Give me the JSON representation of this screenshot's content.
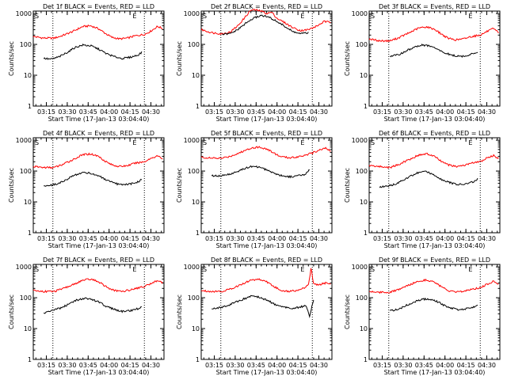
{
  "chart_data": [
    {
      "type": "line",
      "title": "Det 1f BLACK = Events, RED = LLD",
      "ylabel": "Counts/sec",
      "xlabel": "Start Time (17-Jan-13 03:04:40)",
      "x_ticks": [
        "03:15",
        "03:30",
        "03:45",
        "04:00",
        "04:15",
        "04:30"
      ],
      "y_ticks": [
        "1",
        "10",
        "100",
        "1000"
      ],
      "yscale": "log",
      "ylim": [
        1,
        1200
      ],
      "markers": [
        "S",
        "E"
      ],
      "series": [
        {
          "color": "#ff0000",
          "x": [
            0,
            0.08,
            0.16,
            0.22,
            0.3,
            0.38,
            0.44,
            0.5,
            0.55,
            0.6,
            0.66,
            0.72,
            0.78,
            0.85,
            0.9,
            0.95,
            0.99
          ],
          "values": [
            180,
            160,
            160,
            190,
            260,
            380,
            400,
            320,
            230,
            170,
            150,
            160,
            190,
            210,
            270,
            380,
            330
          ]
        },
        {
          "color": "#000000",
          "x": [
            0.08,
            0.14,
            0.2,
            0.26,
            0.32,
            0.38,
            0.44,
            0.5,
            0.56,
            0.62,
            0.68,
            0.74,
            0.8,
            0.83
          ],
          "values": [
            35,
            33,
            40,
            55,
            80,
            95,
            90,
            70,
            50,
            40,
            35,
            38,
            45,
            55
          ]
        }
      ]
    },
    {
      "type": "line",
      "title": "Det 2f BLACK = Events, RED = LLD",
      "ylabel": "Counts/sec",
      "xlabel": "Start Time (17-Jan-13 03:04:40)",
      "x_ticks": [
        "03:15",
        "03:30",
        "03:45",
        "04:00",
        "04:15",
        "04:30"
      ],
      "y_ticks": [
        "1",
        "10",
        "100",
        "1000"
      ],
      "yscale": "log",
      "ylim": [
        1,
        1200
      ],
      "markers": [
        "S",
        "E"
      ],
      "series": [
        {
          "color": "#ff0000",
          "x": [
            0,
            0.08,
            0.16,
            0.22,
            0.28,
            0.34,
            0.38,
            0.42,
            0.46,
            0.5,
            0.54,
            0.58,
            0.64,
            0.7,
            0.76,
            0.82,
            0.88,
            0.94,
            0.99
          ],
          "values": [
            300,
            240,
            220,
            250,
            400,
            800,
            1300,
            1300,
            1200,
            1000,
            1100,
            700,
            500,
            350,
            280,
            300,
            380,
            550,
            520
          ]
        },
        {
          "color": "#000000",
          "x": [
            0.16,
            0.22,
            0.28,
            0.34,
            0.4,
            0.46,
            0.52,
            0.58,
            0.64,
            0.7,
            0.76,
            0.82
          ],
          "values": [
            210,
            220,
            300,
            480,
            700,
            880,
            750,
            550,
            380,
            260,
            220,
            240
          ]
        }
      ]
    },
    {
      "type": "line",
      "title": "Det 3f BLACK = Events, RED = LLD",
      "ylabel": "Counts/sec",
      "xlabel": "Start Time (17-Jan-13 03:04:40)",
      "x_ticks": [
        "03:15",
        "03:30",
        "03:45",
        "04:00",
        "04:15",
        "04:30"
      ],
      "y_ticks": [
        "1",
        "10",
        "100",
        "1000"
      ],
      "yscale": "log",
      "ylim": [
        1,
        1200
      ],
      "markers": [
        "S",
        "E"
      ],
      "series": [
        {
          "color": "#ff0000",
          "x": [
            0,
            0.08,
            0.16,
            0.22,
            0.3,
            0.38,
            0.44,
            0.5,
            0.55,
            0.6,
            0.66,
            0.72,
            0.78,
            0.85,
            0.9,
            0.95,
            0.99
          ],
          "values": [
            150,
            130,
            130,
            160,
            230,
            340,
            370,
            310,
            220,
            160,
            140,
            150,
            180,
            200,
            260,
            320,
            240
          ]
        },
        {
          "color": "#000000",
          "x": [
            0.16,
            0.22,
            0.28,
            0.34,
            0.4,
            0.46,
            0.52,
            0.58,
            0.64,
            0.7,
            0.76,
            0.83
          ],
          "values": [
            42,
            45,
            60,
            80,
            95,
            90,
            70,
            52,
            44,
            40,
            45,
            55
          ]
        }
      ]
    },
    {
      "type": "line",
      "title": "Det 4f BLACK = Events, RED = LLD",
      "ylabel": "Counts/sec",
      "xlabel": "Start Time (17-Jan-13 03:04:40)",
      "x_ticks": [
        "03:15",
        "03:30",
        "03:45",
        "04:00",
        "04:15",
        "04:30"
      ],
      "y_ticks": [
        "1",
        "10",
        "100",
        "1000"
      ],
      "yscale": "log",
      "ylim": [
        1,
        1200
      ],
      "markers": [
        "S",
        "E"
      ],
      "series": [
        {
          "color": "#ff0000",
          "x": [
            0,
            0.08,
            0.16,
            0.22,
            0.3,
            0.38,
            0.44,
            0.5,
            0.55,
            0.6,
            0.66,
            0.72,
            0.78,
            0.85,
            0.9,
            0.95,
            0.99
          ],
          "values": [
            140,
            130,
            130,
            160,
            230,
            340,
            360,
            300,
            210,
            160,
            140,
            150,
            180,
            200,
            260,
            310,
            250
          ]
        },
        {
          "color": "#000000",
          "x": [
            0.08,
            0.14,
            0.2,
            0.26,
            0.32,
            0.38,
            0.44,
            0.5,
            0.56,
            0.62,
            0.68,
            0.74,
            0.8,
            0.83
          ],
          "values": [
            33,
            35,
            40,
            55,
            75,
            90,
            85,
            70,
            50,
            40,
            35,
            38,
            44,
            55
          ]
        }
      ]
    },
    {
      "type": "line",
      "title": "Det 5f BLACK = Events, RED = LLD",
      "ylabel": "Counts/sec",
      "xlabel": "Start Time (17-Jan-13 03:04:40)",
      "x_ticks": [
        "03:15",
        "03:30",
        "03:45",
        "04:00",
        "04:15",
        "04:30"
      ],
      "y_ticks": [
        "1",
        "10",
        "100",
        "1000"
      ],
      "yscale": "log",
      "ylim": [
        1,
        1200
      ],
      "markers": [
        "S",
        "E"
      ],
      "series": [
        {
          "color": "#ff0000",
          "x": [
            0,
            0.08,
            0.16,
            0.22,
            0.3,
            0.38,
            0.44,
            0.5,
            0.55,
            0.6,
            0.66,
            0.72,
            0.78,
            0.85,
            0.9,
            0.95,
            0.99
          ],
          "values": [
            280,
            260,
            260,
            300,
            400,
            560,
            600,
            520,
            400,
            300,
            270,
            280,
            320,
            380,
            480,
            560,
            440
          ]
        },
        {
          "color": "#000000",
          "x": [
            0.08,
            0.14,
            0.2,
            0.26,
            0.32,
            0.38,
            0.44,
            0.5,
            0.56,
            0.62,
            0.68,
            0.74,
            0.8,
            0.83
          ],
          "values": [
            70,
            70,
            75,
            90,
            115,
            140,
            135,
            110,
            85,
            70,
            65,
            70,
            80,
            110
          ]
        }
      ]
    },
    {
      "type": "line",
      "title": "Det 6f BLACK = Events, RED = LLD",
      "ylabel": "Counts/sec",
      "xlabel": "Start Time (17-Jan-13 03:04:40)",
      "x_ticks": [
        "03:15",
        "03:30",
        "03:45",
        "04:00",
        "04:15",
        "04:30"
      ],
      "y_ticks": [
        "1",
        "10",
        "100",
        "1000"
      ],
      "yscale": "log",
      "ylim": [
        1,
        1200
      ],
      "markers": [
        "S",
        "E"
      ],
      "series": [
        {
          "color": "#ff0000",
          "x": [
            0,
            0.08,
            0.16,
            0.22,
            0.3,
            0.38,
            0.44,
            0.5,
            0.55,
            0.6,
            0.66,
            0.72,
            0.78,
            0.85,
            0.9,
            0.95,
            0.99
          ],
          "values": [
            150,
            140,
            130,
            160,
            230,
            330,
            360,
            300,
            210,
            160,
            140,
            150,
            180,
            200,
            260,
            320,
            260
          ]
        },
        {
          "color": "#000000",
          "x": [
            0.08,
            0.14,
            0.2,
            0.26,
            0.32,
            0.38,
            0.44,
            0.5,
            0.56,
            0.62,
            0.68,
            0.74,
            0.8,
            0.83
          ],
          "values": [
            30,
            32,
            38,
            50,
            70,
            90,
            95,
            75,
            52,
            42,
            36,
            38,
            45,
            55
          ]
        }
      ]
    },
    {
      "type": "line",
      "title": "Det 7f BLACK = Events, RED = LLD",
      "ylabel": "Counts/sec",
      "xlabel": "Start Time (17-Jan-13 03:04:40)",
      "x_ticks": [
        "03:15",
        "03:30",
        "03:45",
        "04:00",
        "04:15",
        "04:30"
      ],
      "y_ticks": [
        "1",
        "10",
        "100",
        "1000"
      ],
      "yscale": "log",
      "ylim": [
        1,
        1200
      ],
      "markers": [
        "S",
        "E"
      ],
      "series": [
        {
          "color": "#ff0000",
          "x": [
            0,
            0.08,
            0.16,
            0.22,
            0.3,
            0.38,
            0.44,
            0.5,
            0.55,
            0.6,
            0.66,
            0.72,
            0.78,
            0.85,
            0.9,
            0.95,
            0.99
          ],
          "values": [
            170,
            160,
            160,
            190,
            260,
            370,
            400,
            330,
            240,
            180,
            160,
            170,
            200,
            230,
            290,
            360,
            310
          ]
        },
        {
          "color": "#000000",
          "x": [
            0.08,
            0.14,
            0.2,
            0.26,
            0.32,
            0.38,
            0.44,
            0.5,
            0.56,
            0.62,
            0.68,
            0.74,
            0.8,
            0.83
          ],
          "values": [
            32,
            38,
            45,
            58,
            80,
            95,
            90,
            72,
            52,
            42,
            36,
            38,
            44,
            50
          ]
        }
      ]
    },
    {
      "type": "line",
      "title": "Det 8f BLACK = Events, RED = LLD",
      "ylabel": "Counts/sec",
      "xlabel": "Start Time (17-Jan-13 03:04:40)",
      "x_ticks": [
        "03:15",
        "03:30",
        "03:45",
        "04:00",
        "04:15",
        "04:30"
      ],
      "y_ticks": [
        "1",
        "10",
        "100",
        "1000"
      ],
      "yscale": "log",
      "ylim": [
        1,
        1200
      ],
      "markers": [
        "S",
        "E"
      ],
      "series": [
        {
          "color": "#ff0000",
          "x": [
            0,
            0.08,
            0.16,
            0.22,
            0.3,
            0.38,
            0.44,
            0.5,
            0.55,
            0.6,
            0.66,
            0.72,
            0.78,
            0.82,
            0.84,
            0.86,
            0.9,
            0.95,
            0.99
          ],
          "values": [
            170,
            160,
            160,
            190,
            260,
            370,
            400,
            330,
            240,
            180,
            160,
            170,
            200,
            250,
            900,
            280,
            260,
            300,
            280
          ]
        },
        {
          "color": "#000000",
          "x": [
            0.08,
            0.14,
            0.2,
            0.26,
            0.32,
            0.38,
            0.44,
            0.5,
            0.56,
            0.62,
            0.68,
            0.74,
            0.8,
            0.83,
            0.85,
            0.86
          ],
          "values": [
            45,
            48,
            55,
            70,
            90,
            110,
            105,
            85,
            62,
            50,
            45,
            48,
            55,
            25,
            60,
            80
          ]
        }
      ]
    },
    {
      "type": "line",
      "title": "Det 9f BLACK = Events, RED = LLD",
      "ylabel": "Counts/sec",
      "xlabel": "Start Time (17-Jan-13 03:04:40)",
      "x_ticks": [
        "03:15",
        "03:30",
        "03:45",
        "04:00",
        "04:15",
        "04:30"
      ],
      "y_ticks": [
        "1",
        "10",
        "100",
        "1000"
      ],
      "yscale": "log",
      "ylim": [
        1,
        1200
      ],
      "markers": [
        "S",
        "E"
      ],
      "series": [
        {
          "color": "#ff0000",
          "x": [
            0,
            0.08,
            0.16,
            0.22,
            0.3,
            0.38,
            0.44,
            0.5,
            0.55,
            0.6,
            0.66,
            0.72,
            0.78,
            0.85,
            0.9,
            0.95,
            0.99
          ],
          "values": [
            160,
            150,
            150,
            180,
            250,
            350,
            380,
            320,
            230,
            170,
            150,
            160,
            190,
            210,
            270,
            340,
            280
          ]
        },
        {
          "color": "#000000",
          "x": [
            0.16,
            0.22,
            0.28,
            0.34,
            0.4,
            0.46,
            0.52,
            0.58,
            0.64,
            0.7,
            0.76,
            0.83
          ],
          "values": [
            38,
            42,
            55,
            72,
            88,
            92,
            75,
            55,
            45,
            40,
            45,
            55
          ]
        }
      ]
    }
  ]
}
